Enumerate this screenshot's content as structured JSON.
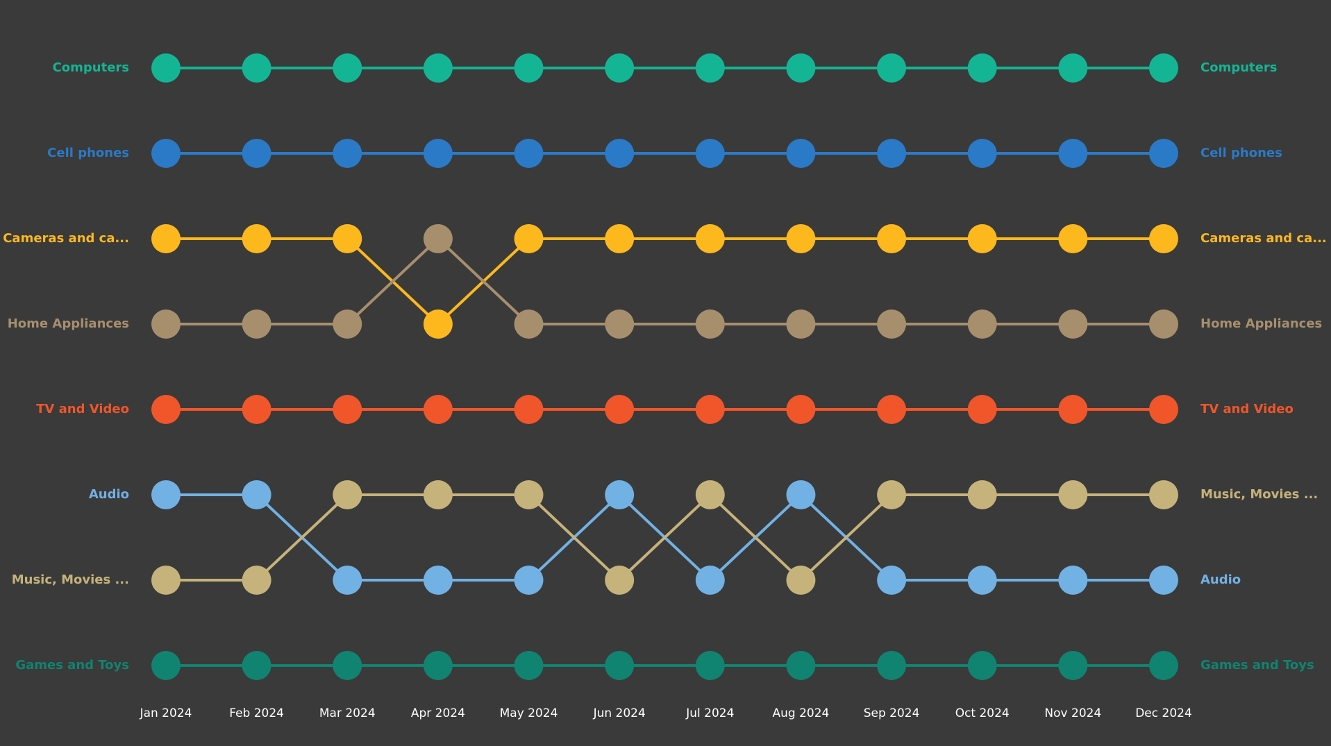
{
  "chart_data": {
    "type": "line",
    "subtype": "bump",
    "title": "",
    "xlabel": "",
    "ylabel": "",
    "background": "#3a3a3a",
    "x": [
      "Jan 2024",
      "Feb 2024",
      "Mar 2024",
      "Apr 2024",
      "May 2024",
      "Jun 2024",
      "Jul 2024",
      "Aug 2024",
      "Sep 2024",
      "Oct 2024",
      "Nov 2024",
      "Dec 2024"
    ],
    "y_scale": "rank (1 = top)",
    "series": [
      {
        "name": "Computers",
        "label": "Computers",
        "color": "#13b594",
        "values": [
          1,
          1,
          1,
          1,
          1,
          1,
          1,
          1,
          1,
          1,
          1,
          1
        ]
      },
      {
        "name": "Cell phones",
        "label": "Cell phones",
        "color": "#2a7ac7",
        "values": [
          2,
          2,
          2,
          2,
          2,
          2,
          2,
          2,
          2,
          2,
          2,
          2
        ]
      },
      {
        "name": "Cameras and camcorders",
        "label": "Cameras and ca...",
        "color": "#fdb81e",
        "values": [
          3,
          3,
          3,
          4,
          3,
          3,
          3,
          3,
          3,
          3,
          3,
          3
        ]
      },
      {
        "name": "Home Appliances",
        "label": "Home Appliances",
        "color": "#a78f6e",
        "values": [
          4,
          4,
          4,
          3,
          4,
          4,
          4,
          4,
          4,
          4,
          4,
          4
        ]
      },
      {
        "name": "TV and Video",
        "label": "TV and Video",
        "color": "#f0562a",
        "values": [
          5,
          5,
          5,
          5,
          5,
          5,
          5,
          5,
          5,
          5,
          5,
          5
        ]
      },
      {
        "name": "Audio",
        "label": "Audio",
        "color": "#72b1e3",
        "values": [
          6,
          6,
          7,
          7,
          7,
          6,
          7,
          6,
          7,
          7,
          7,
          7
        ]
      },
      {
        "name": "Music, Movies and Audio Books",
        "label": "Music, Movies ...",
        "color": "#c6b37b",
        "values": [
          7,
          7,
          6,
          6,
          6,
          7,
          6,
          7,
          6,
          6,
          6,
          6
        ]
      },
      {
        "name": "Games and Toys",
        "label": "Games and Toys",
        "color": "#108470",
        "values": [
          8,
          8,
          8,
          8,
          8,
          8,
          8,
          8,
          8,
          8,
          8,
          8
        ]
      }
    ]
  }
}
